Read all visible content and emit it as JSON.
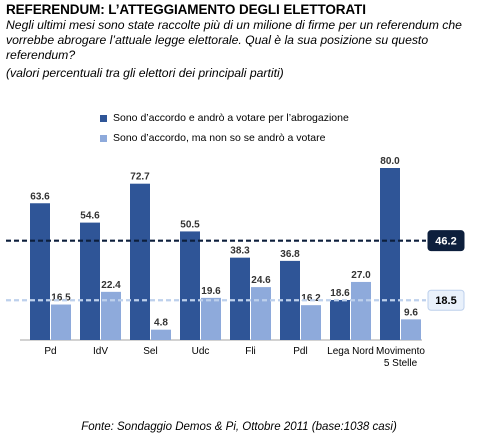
{
  "header": {
    "title": "REFERENDUM: L’ATTEGGIAMENTO DEGLI ELETTORATI",
    "subtitle": "Negli ultimi mesi sono state raccolte più di un milione di firme per un referendum che vorrebbe abrogare l’attuale legge elettorale. Qual è la sua posizione su questo referendum?",
    "note": "(valori percentuali tra gli elettori dei principali partiti)"
  },
  "colors": {
    "series1": "#2f5597",
    "series2": "#8eaadb",
    "avg1_box_bg": "#0d1f3c",
    "avg1_line": "#0d1f3c",
    "avg2_box_bg": "#e9f1fb",
    "avg2_line": "#bdd0ec"
  },
  "chart_data": {
    "type": "bar",
    "categories": [
      "Pd",
      "IdV",
      "Sel",
      "Udc",
      "Fli",
      "Pdl",
      "Lega Nord",
      "Movimento 5 Stelle"
    ],
    "series": [
      {
        "name": "Sono d’accordo e andrò a votare per l’abrogazione",
        "values": [
          63.6,
          54.6,
          72.7,
          50.5,
          38.3,
          36.8,
          18.6,
          80.0
        ]
      },
      {
        "name": "Sono d’accordo, ma non so se andrò a votare",
        "values": [
          16.5,
          22.4,
          4.8,
          19.6,
          24.6,
          16.2,
          27.0,
          9.6
        ]
      }
    ],
    "reference_lines": [
      {
        "series": 0,
        "value": 46.2
      },
      {
        "series": 1,
        "value": 18.5
      }
    ],
    "ylim": [
      0,
      80
    ],
    "legend": "top"
  },
  "source": "Fonte: Sondaggio Demos & Pi, Ottobre 2011 (base:1038 casi)"
}
